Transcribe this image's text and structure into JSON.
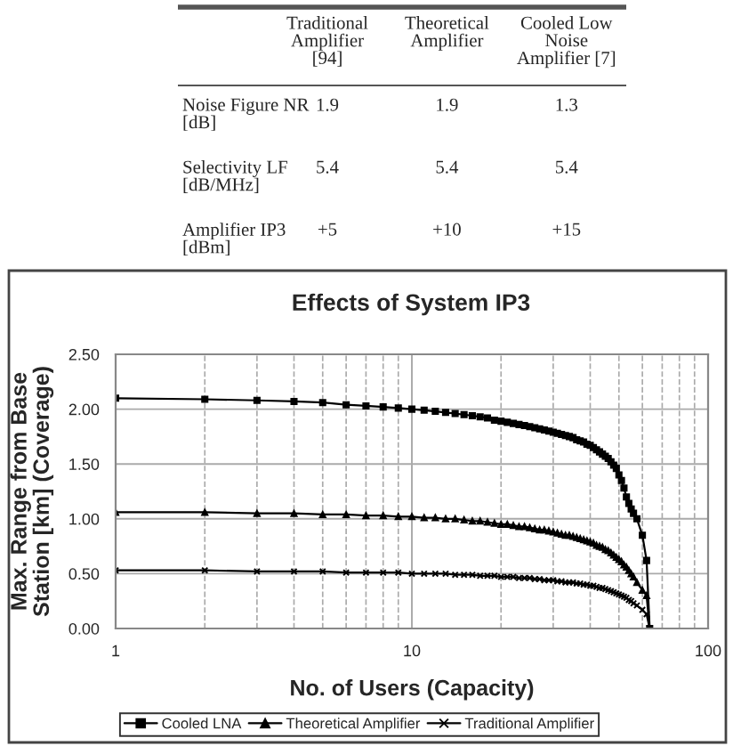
{
  "chart_data": [
    {
      "type": "other",
      "categories": [
        "Traditional\nAmplifier\n[94]",
        "Theoretical\nAmplifier",
        "Cooled Low\nNoise\nAmplifier [7]"
      ],
      "y_categories": [
        "Noise Figure NR\n[dB]",
        "Selectivity LF\n[dB/MHz]",
        "Amplifier IP3\n[dBm]"
      ],
      "cell_labels": [
        [
          "1.9",
          "1.9",
          "1.3"
        ],
        [
          "5.4",
          "5.4",
          "5.4"
        ],
        [
          "+5",
          "+10",
          "+15"
        ]
      ]
    },
    {
      "type": "line",
      "title": "Effects of System IP3",
      "xlabel": "No. of Users (Capacity)",
      "ylabel": "Max. Range from Base\nStation [km] (Coverage)",
      "x": [
        1,
        2,
        3,
        4,
        5,
        6,
        7,
        8,
        9,
        10,
        11,
        12,
        13,
        14,
        15,
        16,
        17,
        18,
        19,
        20,
        21,
        22,
        23,
        24,
        25,
        26,
        27,
        28,
        29,
        30,
        31,
        32,
        33,
        34,
        35,
        36,
        37,
        38,
        39,
        40,
        41,
        42,
        43,
        44,
        45,
        46,
        47,
        48,
        49,
        50,
        51,
        52,
        53,
        54,
        55,
        56,
        57.5,
        60,
        62,
        63.5
      ],
      "series": [
        {
          "name": "Cooled LNA",
          "color": "#000000",
          "marker": "square",
          "values": [
            2.1,
            2.09,
            2.08,
            2.07,
            2.06,
            2.04,
            2.03,
            2.02,
            2.01,
            2.0,
            1.99,
            1.98,
            1.97,
            1.96,
            1.95,
            1.94,
            1.93,
            1.92,
            1.9,
            1.89,
            1.88,
            1.87,
            1.86,
            1.85,
            1.84,
            1.83,
            1.82,
            1.81,
            1.8,
            1.79,
            1.78,
            1.77,
            1.76,
            1.75,
            1.74,
            1.72,
            1.71,
            1.7,
            1.68,
            1.67,
            1.65,
            1.63,
            1.61,
            1.59,
            1.57,
            1.55,
            1.52,
            1.49,
            1.46,
            1.4,
            1.35,
            1.28,
            1.2,
            1.14,
            1.09,
            1.05,
            1.0,
            0.85,
            0.62,
            0.0
          ]
        },
        {
          "name": "Theoretical Amplifier",
          "color": "#000000",
          "marker": "triangle",
          "values": [
            1.06,
            1.06,
            1.05,
            1.05,
            1.04,
            1.04,
            1.03,
            1.03,
            1.02,
            1.02,
            1.01,
            1.01,
            1.0,
            1.0,
            0.99,
            0.98,
            0.98,
            0.97,
            0.96,
            0.95,
            0.95,
            0.94,
            0.93,
            0.93,
            0.92,
            0.91,
            0.9,
            0.9,
            0.89,
            0.88,
            0.87,
            0.86,
            0.85,
            0.85,
            0.84,
            0.83,
            0.82,
            0.81,
            0.8,
            0.79,
            0.78,
            0.76,
            0.75,
            0.74,
            0.72,
            0.71,
            0.69,
            0.67,
            0.65,
            0.63,
            0.61,
            0.58,
            0.56,
            0.53,
            0.5,
            0.47,
            0.42,
            0.35,
            0.3,
            0.0
          ]
        },
        {
          "name": "Traditional Amplifier",
          "color": "#000000",
          "marker": "cross",
          "values": [
            0.53,
            0.53,
            0.52,
            0.52,
            0.52,
            0.51,
            0.51,
            0.51,
            0.51,
            0.5,
            0.5,
            0.5,
            0.5,
            0.49,
            0.49,
            0.49,
            0.48,
            0.48,
            0.48,
            0.47,
            0.47,
            0.47,
            0.46,
            0.46,
            0.46,
            0.45,
            0.45,
            0.44,
            0.44,
            0.44,
            0.43,
            0.43,
            0.42,
            0.42,
            0.42,
            0.41,
            0.41,
            0.4,
            0.4,
            0.39,
            0.39,
            0.38,
            0.37,
            0.37,
            0.36,
            0.35,
            0.34,
            0.33,
            0.32,
            0.31,
            0.3,
            0.29,
            0.28,
            0.26,
            0.25,
            0.23,
            0.21,
            0.17,
            0.13,
            0.0
          ]
        }
      ],
      "log": "x",
      "xlim": [
        1,
        100
      ],
      "xticks": [
        1,
        10,
        100
      ],
      "ylim": [
        0,
        2.5
      ],
      "yticks": [
        {
          "value": 0,
          "label": "0.00"
        },
        {
          "value": 0.5,
          "label": "0.50"
        },
        {
          "value": 1,
          "label": "1.00"
        },
        {
          "value": 1.5,
          "label": "1.50"
        },
        {
          "value": 2,
          "label": "2.00"
        },
        {
          "value": 2.5,
          "label": "2.50"
        }
      ],
      "grid": true,
      "legend": "bottom",
      "line_style": "solid"
    }
  ]
}
